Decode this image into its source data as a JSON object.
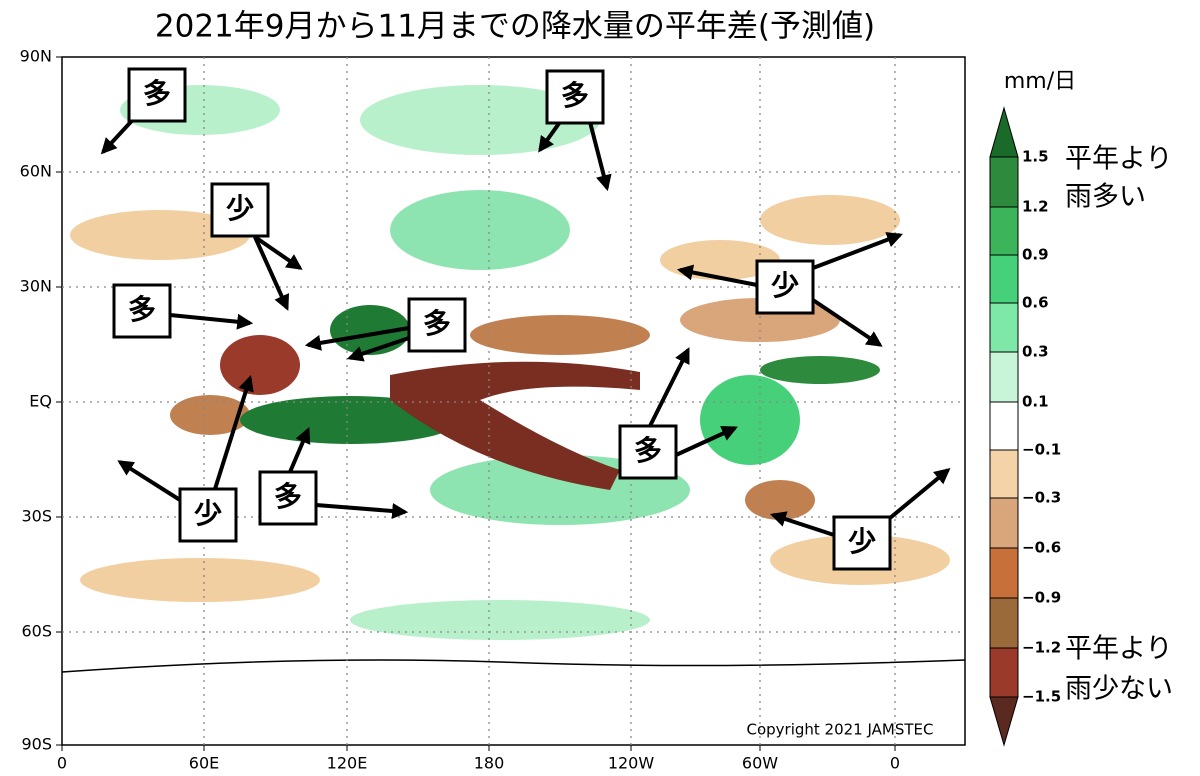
{
  "title": "2021年9月から11月までの降水量の平年差(予測値)",
  "map": {
    "lat_labels": [
      "90N",
      "60N",
      "30N",
      "EQ",
      "30S",
      "60S",
      "90S"
    ],
    "lon_labels": [
      "0",
      "60E",
      "120E",
      "180",
      "120W",
      "60W",
      "0"
    ],
    "copyright": "Copyright 2021 JAMSTEC"
  },
  "colorbar": {
    "unit": "mm/日",
    "ticks": [
      "1.5",
      "1.2",
      "0.9",
      "0.6",
      "0.3",
      "0.1",
      "−0.1",
      "−0.3",
      "−0.6",
      "−0.9",
      "−1.2",
      "−1.5"
    ],
    "top_label": [
      "平年より",
      "雨多い"
    ],
    "bottom_label": [
      "平年より",
      "雨少ない"
    ]
  },
  "annotations": [
    "多",
    "多",
    "少",
    "多",
    "多",
    "少",
    "多",
    "少",
    "多",
    "少"
  ]
}
